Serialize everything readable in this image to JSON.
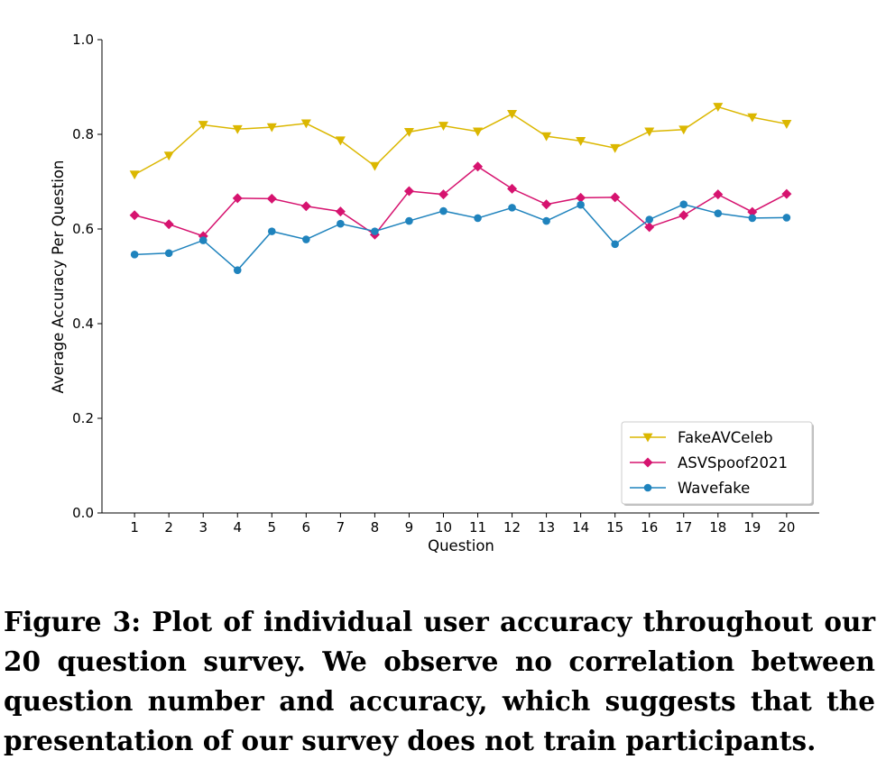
{
  "chart_data": {
    "type": "line",
    "title": "",
    "xlabel": "Question",
    "ylabel": "Average Accuracy Per Question",
    "x": [
      1,
      2,
      3,
      4,
      5,
      6,
      7,
      8,
      9,
      10,
      11,
      12,
      13,
      14,
      15,
      16,
      17,
      18,
      19,
      20
    ],
    "xticks": [
      "1",
      "2",
      "3",
      "4",
      "5",
      "6",
      "7",
      "8",
      "9",
      "10",
      "11",
      "12",
      "13",
      "14",
      "15",
      "16",
      "17",
      "18",
      "19",
      "20"
    ],
    "ylim": [
      0.0,
      1.0
    ],
    "yticks": [
      "0.0",
      "0.2",
      "0.4",
      "0.6",
      "0.8",
      "1.0"
    ],
    "grid": false,
    "legend_position": "lower-right",
    "series": [
      {
        "name": "FakeAVCeleb",
        "color": "#dbb700",
        "marker": "triangle-down",
        "values": [
          0.715,
          0.755,
          0.82,
          0.811,
          0.815,
          0.823,
          0.787,
          0.733,
          0.805,
          0.818,
          0.806,
          0.843,
          0.796,
          0.786,
          0.771,
          0.806,
          0.81,
          0.858,
          0.836,
          0.822
        ]
      },
      {
        "name": "ASVSpoof2021",
        "color": "#d6136f",
        "marker": "diamond",
        "values": [
          0.629,
          0.61,
          0.585,
          0.665,
          0.664,
          0.648,
          0.637,
          0.588,
          0.68,
          0.673,
          0.732,
          0.685,
          0.652,
          0.666,
          0.667,
          0.604,
          0.629,
          0.673,
          0.636,
          0.674
        ]
      },
      {
        "name": "Wavefake",
        "color": "#1f83bd",
        "marker": "circle",
        "values": [
          0.546,
          0.549,
          0.576,
          0.513,
          0.595,
          0.578,
          0.611,
          0.595,
          0.617,
          0.638,
          0.623,
          0.645,
          0.617,
          0.651,
          0.568,
          0.62,
          0.652,
          0.633,
          0.623,
          0.624
        ]
      }
    ]
  },
  "caption": "Figure 3: Plot of individual user accuracy throughout our 20 question survey. We observe no correlation between question number and accuracy, which suggests that the presentation of our survey does not train participants."
}
